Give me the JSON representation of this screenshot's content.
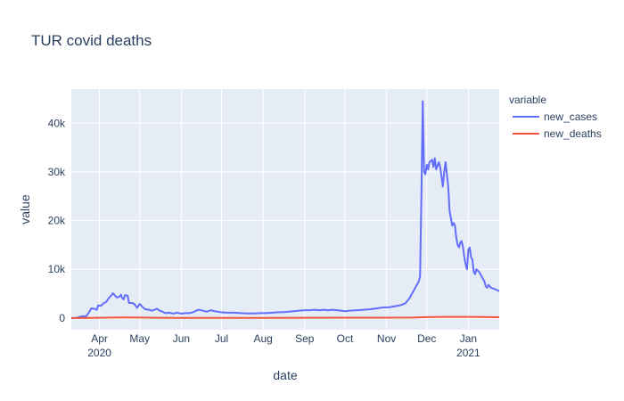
{
  "chart_data": {
    "type": "line",
    "title": "TUR covid deaths",
    "xlabel": "date",
    "ylabel": "value",
    "legend_title": "variable",
    "legend_position": "right",
    "grid": true,
    "x_range": [
      "2020-03-11",
      "2021-01-24"
    ],
    "ylim": [
      -2400,
      47000
    ],
    "y_ticks": [
      {
        "value": 0,
        "label": "0"
      },
      {
        "value": 10000,
        "label": "10k"
      },
      {
        "value": 20000,
        "label": "20k"
      },
      {
        "value": 30000,
        "label": "30k"
      },
      {
        "value": 40000,
        "label": "40k"
      }
    ],
    "x_ticks": [
      {
        "date": "2020-04-01",
        "label": "Apr",
        "sublabel": "2020"
      },
      {
        "date": "2020-05-01",
        "label": "May",
        "sublabel": ""
      },
      {
        "date": "2020-06-01",
        "label": "Jun",
        "sublabel": ""
      },
      {
        "date": "2020-07-01",
        "label": "Jul",
        "sublabel": ""
      },
      {
        "date": "2020-08-01",
        "label": "Aug",
        "sublabel": ""
      },
      {
        "date": "2020-09-01",
        "label": "Sep",
        "sublabel": ""
      },
      {
        "date": "2020-10-01",
        "label": "Oct",
        "sublabel": ""
      },
      {
        "date": "2020-11-01",
        "label": "Nov",
        "sublabel": ""
      },
      {
        "date": "2020-12-01",
        "label": "Dec",
        "sublabel": ""
      },
      {
        "date": "2021-01-01",
        "label": "Jan",
        "sublabel": "2021"
      }
    ],
    "series": [
      {
        "name": "new_cases",
        "color": "#636efa",
        "points": [
          [
            "2020-03-11",
            0
          ],
          [
            "2020-03-15",
            20
          ],
          [
            "2020-03-18",
            300
          ],
          [
            "2020-03-20",
            400
          ],
          [
            "2020-03-22",
            300
          ],
          [
            "2020-03-24",
            1100
          ],
          [
            "2020-03-26",
            2000
          ],
          [
            "2020-03-28",
            1900
          ],
          [
            "2020-03-30",
            1700
          ],
          [
            "2020-03-31",
            2600
          ],
          [
            "2020-04-02",
            2500
          ],
          [
            "2020-04-04",
            3000
          ],
          [
            "2020-04-06",
            3300
          ],
          [
            "2020-04-08",
            4100
          ],
          [
            "2020-04-10",
            4700
          ],
          [
            "2020-04-11",
            5100
          ],
          [
            "2020-04-12",
            4800
          ],
          [
            "2020-04-14",
            4200
          ],
          [
            "2020-04-16",
            4400
          ],
          [
            "2020-04-17",
            4800
          ],
          [
            "2020-04-18",
            4100
          ],
          [
            "2020-04-19",
            3800
          ],
          [
            "2020-04-20",
            4700
          ],
          [
            "2020-04-22",
            4600
          ],
          [
            "2020-04-23",
            3100
          ],
          [
            "2020-04-25",
            3100
          ],
          [
            "2020-04-27",
            2900
          ],
          [
            "2020-04-29",
            2100
          ],
          [
            "2020-05-01",
            2900
          ],
          [
            "2020-05-03",
            2300
          ],
          [
            "2020-05-05",
            1800
          ],
          [
            "2020-05-08",
            1700
          ],
          [
            "2020-05-10",
            1500
          ],
          [
            "2020-05-12",
            1700
          ],
          [
            "2020-05-14",
            1900
          ],
          [
            "2020-05-16",
            1500
          ],
          [
            "2020-05-18",
            1300
          ],
          [
            "2020-05-20",
            1000
          ],
          [
            "2020-05-23",
            1100
          ],
          [
            "2020-05-26",
            900
          ],
          [
            "2020-05-29",
            1100
          ],
          [
            "2020-06-01",
            900
          ],
          [
            "2020-06-04",
            1000
          ],
          [
            "2020-06-07",
            1000
          ],
          [
            "2020-06-10",
            1200
          ],
          [
            "2020-06-12",
            1500
          ],
          [
            "2020-06-14",
            1700
          ],
          [
            "2020-06-17",
            1500
          ],
          [
            "2020-06-20",
            1300
          ],
          [
            "2020-06-23",
            1600
          ],
          [
            "2020-06-26",
            1400
          ],
          [
            "2020-06-30",
            1200
          ],
          [
            "2020-07-05",
            1100
          ],
          [
            "2020-07-10",
            1100
          ],
          [
            "2020-07-15",
            1000
          ],
          [
            "2020-07-20",
            950
          ],
          [
            "2020-07-25",
            950
          ],
          [
            "2020-07-30",
            1000
          ],
          [
            "2020-08-03",
            1000
          ],
          [
            "2020-08-08",
            1100
          ],
          [
            "2020-08-12",
            1200
          ],
          [
            "2020-08-16",
            1200
          ],
          [
            "2020-08-20",
            1300
          ],
          [
            "2020-08-24",
            1400
          ],
          [
            "2020-08-28",
            1500
          ],
          [
            "2020-09-01",
            1600
          ],
          [
            "2020-09-05",
            1600
          ],
          [
            "2020-09-08",
            1700
          ],
          [
            "2020-09-12",
            1600
          ],
          [
            "2020-09-15",
            1700
          ],
          [
            "2020-09-19",
            1600
          ],
          [
            "2020-09-22",
            1700
          ],
          [
            "2020-09-25",
            1600
          ],
          [
            "2020-09-28",
            1500
          ],
          [
            "2020-10-01",
            1400
          ],
          [
            "2020-10-05",
            1500
          ],
          [
            "2020-10-10",
            1600
          ],
          [
            "2020-10-15",
            1700
          ],
          [
            "2020-10-20",
            1800
          ],
          [
            "2020-10-25",
            2000
          ],
          [
            "2020-10-30",
            2200
          ],
          [
            "2020-11-03",
            2200
          ],
          [
            "2020-11-07",
            2400
          ],
          [
            "2020-11-11",
            2600
          ],
          [
            "2020-11-15",
            3000
          ],
          [
            "2020-11-18",
            4000
          ],
          [
            "2020-11-21",
            5500
          ],
          [
            "2020-11-23",
            6500
          ],
          [
            "2020-11-24",
            7000
          ],
          [
            "2020-11-25",
            7500
          ],
          [
            "2020-11-26",
            8500
          ],
          [
            "2020-11-27",
            25000
          ],
          [
            "2020-11-28",
            44500
          ],
          [
            "2020-11-29",
            30000
          ],
          [
            "2020-11-30",
            29500
          ],
          [
            "2020-12-01",
            31500
          ],
          [
            "2020-12-02",
            30500
          ],
          [
            "2020-12-03",
            32000
          ],
          [
            "2020-12-05",
            32500
          ],
          [
            "2020-12-06",
            31000
          ],
          [
            "2020-12-07",
            32800
          ],
          [
            "2020-12-08",
            30500
          ],
          [
            "2020-12-10",
            32000
          ],
          [
            "2020-12-11",
            31000
          ],
          [
            "2020-12-13",
            27000
          ],
          [
            "2020-12-14",
            30000
          ],
          [
            "2020-12-15",
            32000
          ],
          [
            "2020-12-16",
            29500
          ],
          [
            "2020-12-17",
            27000
          ],
          [
            "2020-12-18",
            22000
          ],
          [
            "2020-12-19",
            20500
          ],
          [
            "2020-12-20",
            19000
          ],
          [
            "2020-12-21",
            19500
          ],
          [
            "2020-12-22",
            19000
          ],
          [
            "2020-12-23",
            16500
          ],
          [
            "2020-12-24",
            15000
          ],
          [
            "2020-12-25",
            14500
          ],
          [
            "2020-12-26",
            15500
          ],
          [
            "2020-12-27",
            15800
          ],
          [
            "2020-12-28",
            14500
          ],
          [
            "2020-12-29",
            12500
          ],
          [
            "2020-12-30",
            11000
          ],
          [
            "2020-12-31",
            10000
          ],
          [
            "2021-01-01",
            14000
          ],
          [
            "2021-01-02",
            14500
          ],
          [
            "2021-01-03",
            12500
          ],
          [
            "2021-01-04",
            12000
          ],
          [
            "2021-01-05",
            9500
          ],
          [
            "2021-01-06",
            9000
          ],
          [
            "2021-01-07",
            10000
          ],
          [
            "2021-01-09",
            9500
          ],
          [
            "2021-01-11",
            8500
          ],
          [
            "2021-01-13",
            7500
          ],
          [
            "2021-01-14",
            6500
          ],
          [
            "2021-01-15",
            6200
          ],
          [
            "2021-01-16",
            6800
          ],
          [
            "2021-01-18",
            6200
          ],
          [
            "2021-01-20",
            6000
          ],
          [
            "2021-01-22",
            5800
          ],
          [
            "2021-01-24",
            5500
          ]
        ]
      },
      {
        "name": "new_deaths",
        "color": "#ef553b",
        "points": [
          [
            "2020-03-11",
            0
          ],
          [
            "2020-03-25",
            20
          ],
          [
            "2020-04-10",
            100
          ],
          [
            "2020-04-20",
            120
          ],
          [
            "2020-05-01",
            90
          ],
          [
            "2020-05-15",
            50
          ],
          [
            "2020-06-01",
            30
          ],
          [
            "2020-07-01",
            20
          ],
          [
            "2020-08-01",
            20
          ],
          [
            "2020-09-01",
            50
          ],
          [
            "2020-10-01",
            60
          ],
          [
            "2020-11-01",
            80
          ],
          [
            "2020-11-20",
            100
          ],
          [
            "2020-12-01",
            180
          ],
          [
            "2020-12-15",
            220
          ],
          [
            "2021-01-01",
            230
          ],
          [
            "2021-01-10",
            200
          ],
          [
            "2021-01-24",
            150
          ]
        ]
      }
    ]
  }
}
